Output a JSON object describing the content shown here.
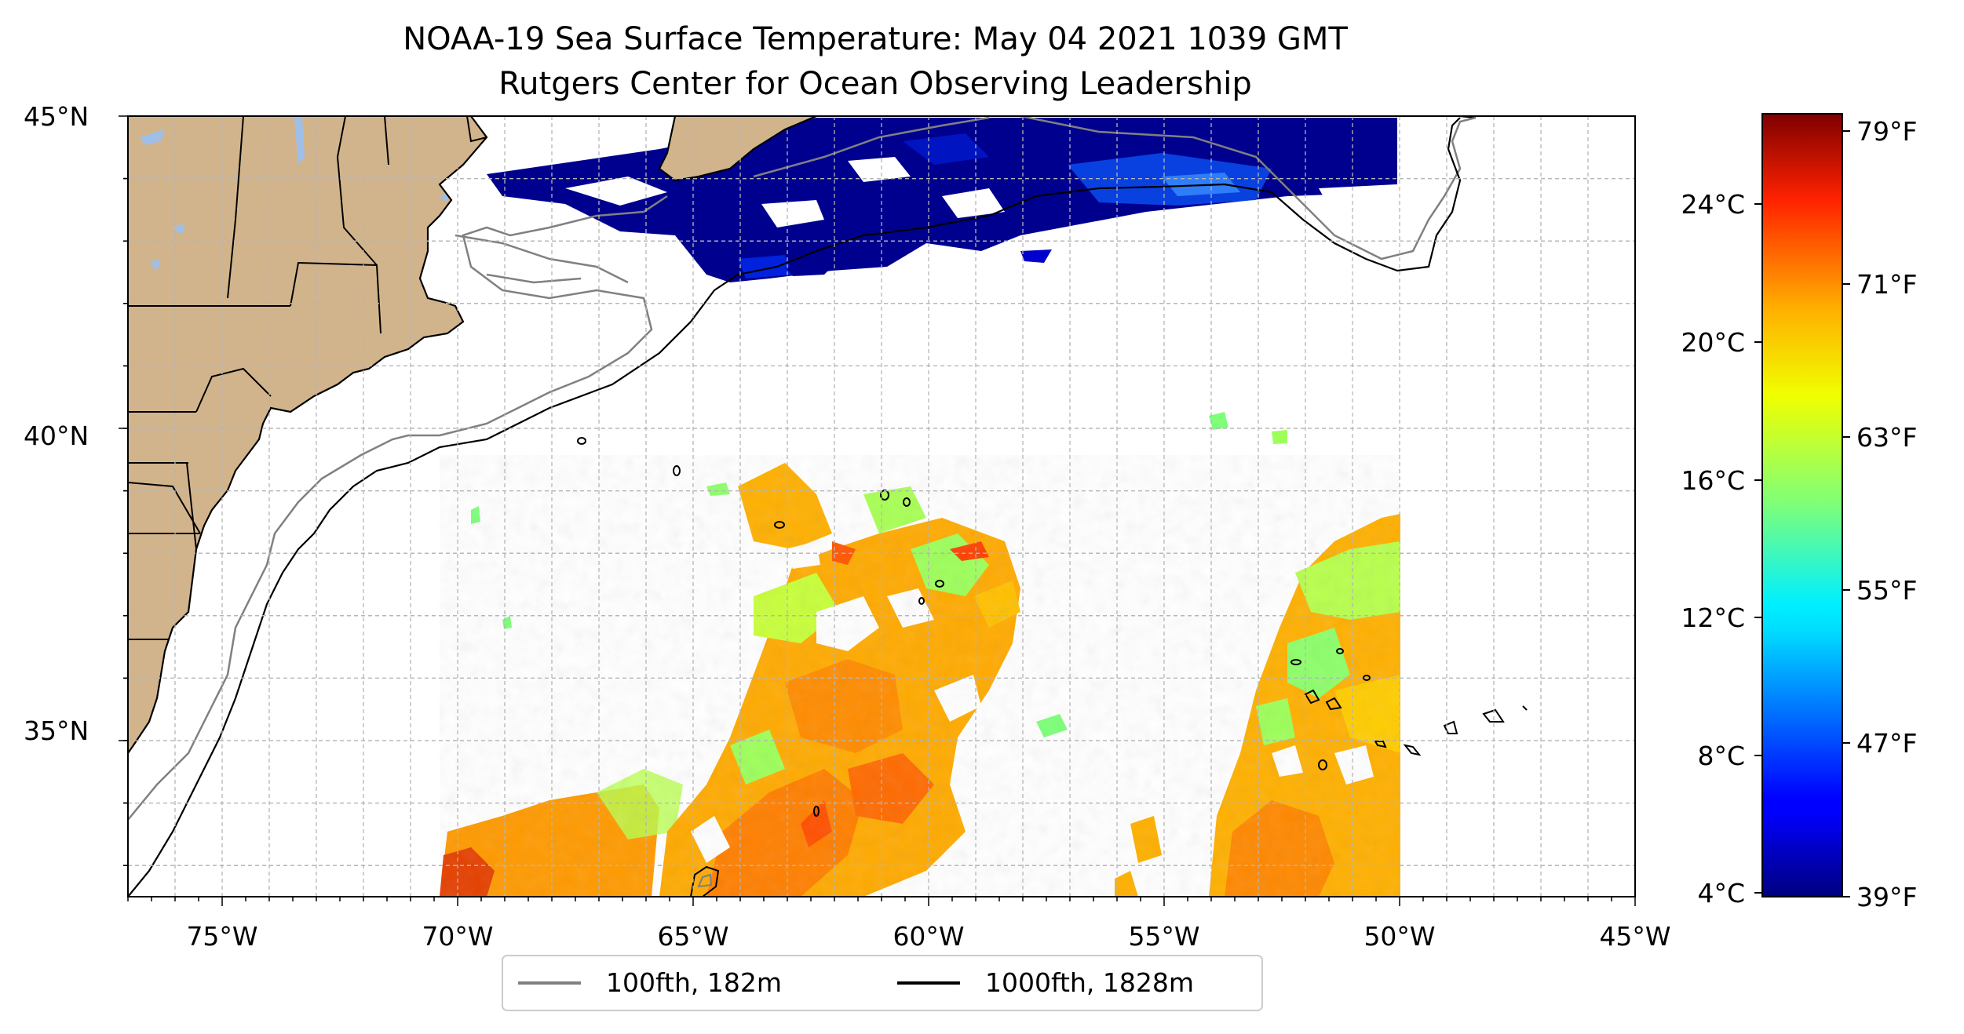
{
  "title": {
    "line1": "NOAA-19 Sea Surface Temperature: May 04 2021 1039 GMT",
    "line2": "Rutgers Center for Ocean Observing Leadership"
  },
  "map": {
    "extent": {
      "lon_min": -77,
      "lon_max": -45,
      "lat_min": 32.5,
      "lat_max": 45
    },
    "lat_ticks": [
      {
        "value": 45,
        "label": "45°N"
      },
      {
        "value": 40,
        "label": "40°N"
      },
      {
        "value": 35,
        "label": "35°N"
      }
    ],
    "lon_ticks": [
      {
        "value": -75,
        "label": "75°W"
      },
      {
        "value": -70,
        "label": "70°W"
      },
      {
        "value": -65,
        "label": "65°W"
      },
      {
        "value": -60,
        "label": "60°W"
      },
      {
        "value": -55,
        "label": "55°W"
      },
      {
        "value": -50,
        "label": "50°W"
      },
      {
        "value": -45,
        "label": "45°W"
      }
    ],
    "minor_grid_step_deg": 1,
    "gridlines": "dashed",
    "colors": {
      "land": "#d2b48c",
      "lakes": "#9fbfe8",
      "isobath_100": "#808080",
      "isobath_1000": "#000000",
      "grid": "#b5b5b5"
    }
  },
  "legend": {
    "placement": "bottom-center",
    "items": [
      {
        "label": "100fth, 182m",
        "color": "#808080"
      },
      {
        "label": "1000fth, 1828m",
        "color": "#000000"
      }
    ]
  },
  "colorbar": {
    "colormap": "jet",
    "min_f": 39,
    "max_f": 80,
    "celsius_ticks": [
      {
        "value_c": 24,
        "label": "24°C"
      },
      {
        "value_c": 20,
        "label": "20°C"
      },
      {
        "value_c": 16,
        "label": "16°C"
      },
      {
        "value_c": 12,
        "label": "12°C"
      },
      {
        "value_c": 8,
        "label": "8°C"
      },
      {
        "value_c": 4,
        "label": "4°C"
      }
    ],
    "fahrenheit_ticks": [
      {
        "value_f": 79,
        "label": "79°F"
      },
      {
        "value_f": 71,
        "label": "71°F"
      },
      {
        "value_f": 63,
        "label": "63°F"
      },
      {
        "value_f": 55,
        "label": "55°F"
      },
      {
        "value_f": 47,
        "label": "47°F"
      },
      {
        "value_f": 39,
        "label": "39°F"
      }
    ]
  }
}
